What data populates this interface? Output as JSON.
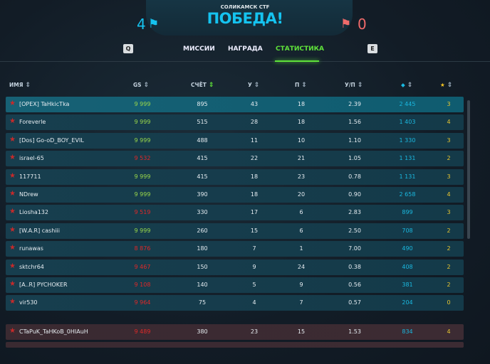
{
  "header": {
    "map": "СОЛИКАМСК CTF",
    "result": "ПОБЕДА!",
    "score_left": "4",
    "score_right": "0"
  },
  "tabs": {
    "prev_key": "Q",
    "next_key": "E",
    "items": [
      "МИССИИ",
      "НАГРАДА",
      "СТАТИСТИКА"
    ],
    "active": "СТАТИСТИКА"
  },
  "columns": {
    "name": "ИМЯ",
    "gs": "GS",
    "score": "СЧЁТ",
    "kills": "У",
    "deaths": "П",
    "kd": "У/П",
    "crystals_icon": "diamond-icon",
    "stars_icon": "star-icon"
  },
  "colors": {
    "accent": "#15c3f0",
    "enemy": "#f06a6a",
    "active_tab": "#5fe23a",
    "gs_high": "#9ad94a",
    "gs_low": "#e02828"
  },
  "team": [
    {
      "name": "[OPEX] TaHkicTka",
      "gs": "9 999",
      "score": "895",
      "k": "43",
      "d": "18",
      "kd": "2.39",
      "cry": "2 445",
      "stars": "3"
    },
    {
      "name": "Foreverle",
      "gs": "9 999",
      "score": "515",
      "k": "28",
      "d": "18",
      "kd": "1.56",
      "cry": "1 403",
      "stars": "4"
    },
    {
      "name": "[Dos] Go-oD_BOY_EVIL",
      "gs": "9 999",
      "score": "488",
      "k": "11",
      "d": "10",
      "kd": "1.10",
      "cry": "1 330",
      "stars": "3"
    },
    {
      "name": "israel-65",
      "gs": "9 532",
      "score": "415",
      "k": "22",
      "d": "21",
      "kd": "1.05",
      "cry": "1 131",
      "stars": "2"
    },
    {
      "name": "117711",
      "gs": "9 999",
      "score": "415",
      "k": "18",
      "d": "23",
      "kd": "0.78",
      "cry": "1 131",
      "stars": "3"
    },
    {
      "name": "NDrew",
      "gs": "9 999",
      "score": "390",
      "k": "18",
      "d": "20",
      "kd": "0.90",
      "cry": "2 658",
      "stars": "4"
    },
    {
      "name": "Liosha132",
      "gs": "9 519",
      "score": "330",
      "k": "17",
      "d": "6",
      "kd": "2.83",
      "cry": "899",
      "stars": "3"
    },
    {
      "name": "[W.A.R] cashiii",
      "gs": "9 999",
      "score": "260",
      "k": "15",
      "d": "6",
      "kd": "2.50",
      "cry": "708",
      "stars": "2"
    },
    {
      "name": "runawas",
      "gs": "8 876",
      "score": "180",
      "k": "7",
      "d": "1",
      "kd": "7.00",
      "cry": "490",
      "stars": "2"
    },
    {
      "name": "sktchr64",
      "gs": "9 467",
      "score": "150",
      "k": "9",
      "d": "24",
      "kd": "0.38",
      "cry": "408",
      "stars": "2"
    },
    {
      "name": "[A..R] PYCHOKER",
      "gs": "9 108",
      "score": "140",
      "k": "5",
      "d": "9",
      "kd": "0.56",
      "cry": "381",
      "stars": "2"
    },
    {
      "name": "vir530",
      "gs": "9 964",
      "score": "75",
      "k": "4",
      "d": "7",
      "kd": "0.57",
      "cry": "204",
      "stars": "0"
    }
  ],
  "enemy": [
    {
      "name": "CTaPuK_TaHKoB_0HIAuH",
      "gs": "9 489",
      "score": "380",
      "k": "23",
      "d": "15",
      "kd": "1.53",
      "cry": "834",
      "stars": "4"
    }
  ]
}
